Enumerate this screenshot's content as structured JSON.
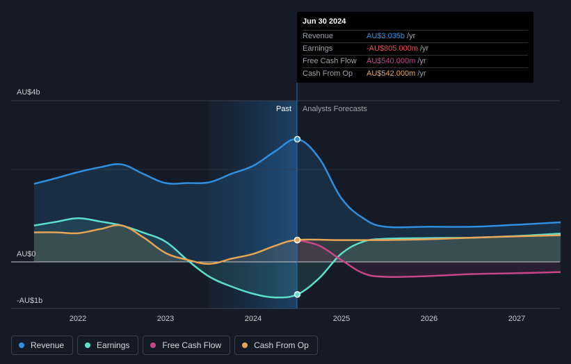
{
  "chart_data": {
    "type": "line",
    "x_ticks": [
      "2022",
      "2023",
      "2024",
      "2025",
      "2026",
      "2027"
    ],
    "y_labels": [
      "AU$4b",
      "AU$0",
      "-AU$1b"
    ],
    "ylim": [
      -1,
      4
    ],
    "region_labels": {
      "past": "Past",
      "forecast": "Analysts Forecasts"
    },
    "series": [
      {
        "name": "Revenue",
        "color": "#2f8fe0",
        "points": [
          [
            2021.5,
            1.93
          ],
          [
            2021.75,
            2.07
          ],
          [
            2022.0,
            2.22
          ],
          [
            2022.25,
            2.34
          ],
          [
            2022.5,
            2.41
          ],
          [
            2022.75,
            2.17
          ],
          [
            2023.0,
            1.95
          ],
          [
            2023.25,
            1.95
          ],
          [
            2023.5,
            1.97
          ],
          [
            2023.75,
            2.18
          ],
          [
            2024.0,
            2.38
          ],
          [
            2024.25,
            2.74
          ],
          [
            2024.5,
            3.035
          ],
          [
            2024.75,
            2.56
          ],
          [
            2025.0,
            1.58
          ],
          [
            2025.25,
            1.08
          ],
          [
            2025.5,
            0.87
          ],
          [
            2026.0,
            0.87
          ],
          [
            2026.5,
            0.87
          ],
          [
            2027.0,
            0.92
          ],
          [
            2027.5,
            0.98
          ]
        ]
      },
      {
        "name": "Earnings",
        "color": "#5ce0cc",
        "points": [
          [
            2021.5,
            0.9
          ],
          [
            2021.75,
            0.99
          ],
          [
            2022.0,
            1.08
          ],
          [
            2022.25,
            1.0
          ],
          [
            2022.5,
            0.9
          ],
          [
            2022.75,
            0.72
          ],
          [
            2023.0,
            0.5
          ],
          [
            2023.25,
            0.04
          ],
          [
            2023.5,
            -0.37
          ],
          [
            2023.75,
            -0.61
          ],
          [
            2024.0,
            -0.79
          ],
          [
            2024.25,
            -0.88
          ],
          [
            2024.5,
            -0.805
          ],
          [
            2024.75,
            -0.4
          ],
          [
            2025.0,
            0.2
          ],
          [
            2025.25,
            0.5
          ],
          [
            2025.5,
            0.57
          ],
          [
            2026.0,
            0.59
          ],
          [
            2026.5,
            0.6
          ],
          [
            2027.0,
            0.64
          ],
          [
            2027.5,
            0.7
          ]
        ]
      },
      {
        "name": "Free Cash Flow",
        "color": "#c84589",
        "points": [
          [
            2024.5,
            0.54
          ],
          [
            2024.75,
            0.4
          ],
          [
            2025.0,
            0.05
          ],
          [
            2025.25,
            -0.28
          ],
          [
            2025.5,
            -0.37
          ],
          [
            2026.0,
            -0.35
          ],
          [
            2026.5,
            -0.3
          ],
          [
            2027.0,
            -0.28
          ],
          [
            2027.5,
            -0.25
          ]
        ]
      },
      {
        "name": "Cash From Op",
        "color": "#e8a553",
        "points": [
          [
            2021.5,
            0.73
          ],
          [
            2021.75,
            0.73
          ],
          [
            2022.0,
            0.71
          ],
          [
            2022.25,
            0.81
          ],
          [
            2022.5,
            0.9
          ],
          [
            2022.75,
            0.6
          ],
          [
            2023.0,
            0.22
          ],
          [
            2023.25,
            0.05
          ],
          [
            2023.5,
            -0.05
          ],
          [
            2023.75,
            0.08
          ],
          [
            2024.0,
            0.2
          ],
          [
            2024.25,
            0.4
          ],
          [
            2024.5,
            0.542
          ],
          [
            2025.0,
            0.54
          ],
          [
            2025.5,
            0.54
          ],
          [
            2026.0,
            0.56
          ],
          [
            2026.5,
            0.6
          ],
          [
            2027.0,
            0.63
          ],
          [
            2027.5,
            0.66
          ]
        ]
      }
    ]
  },
  "tooltip": {
    "date": "Jun 30 2024",
    "rows": [
      {
        "label": "Revenue",
        "value": "AU$3.035b",
        "unit": "/yr",
        "color": "#2f8fe0"
      },
      {
        "label": "Earnings",
        "value": "-AU$805.000m",
        "unit": "/yr",
        "color": "#ef4e4e"
      },
      {
        "label": "Free Cash Flow",
        "value": "AU$540.000m",
        "unit": "/yr",
        "color": "#c84589"
      },
      {
        "label": "Cash From Op",
        "value": "AU$542.000m",
        "unit": "/yr",
        "color": "#e8a553"
      }
    ]
  },
  "legend": [
    {
      "label": "Revenue",
      "color": "#2f8fe0"
    },
    {
      "label": "Earnings",
      "color": "#5ce0cc"
    },
    {
      "label": "Free Cash Flow",
      "color": "#c84589"
    },
    {
      "label": "Cash From Op",
      "color": "#e8a553"
    }
  ]
}
